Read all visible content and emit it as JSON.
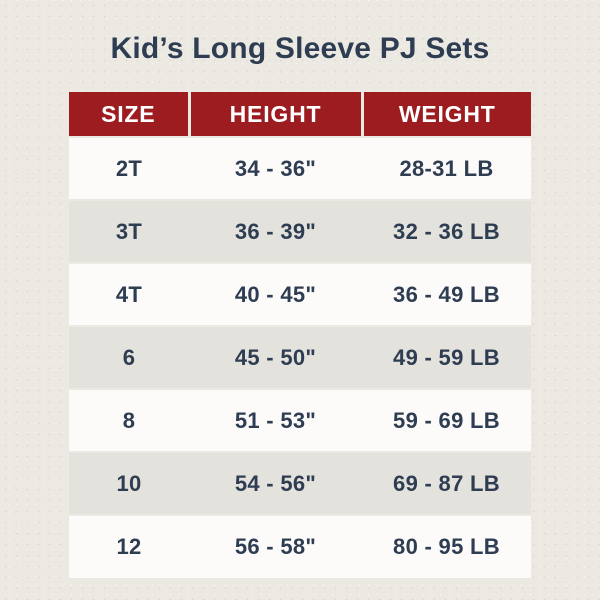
{
  "title": "Kid’s Long Sleeve PJ Sets",
  "colors": {
    "background": "#ece9e3",
    "header_background": "#9d1c1f",
    "header_text": "#ffffff",
    "row_white": "#fcfbfa",
    "row_gray": "#e4e2dd",
    "text": "#2e3d52"
  },
  "chart_data": {
    "type": "table",
    "title": "Kid’s Long Sleeve PJ Sets",
    "columns": [
      "SIZE",
      "HEIGHT",
      "WEIGHT"
    ],
    "rows": [
      [
        "2T",
        "34 - 36\"",
        "28-31 LB"
      ],
      [
        "3T",
        "36 - 39\"",
        "32 - 36 LB"
      ],
      [
        "4T",
        "40 - 45\"",
        "36 - 49 LB"
      ],
      [
        "6",
        "45 - 50\"",
        "49 - 59 LB"
      ],
      [
        "8",
        "51 - 53\"",
        "59 - 69 LB"
      ],
      [
        "10",
        "54 - 56\"",
        "69 - 87 LB"
      ],
      [
        "12",
        "56 - 58\"",
        "80 - 95 LB"
      ]
    ]
  }
}
